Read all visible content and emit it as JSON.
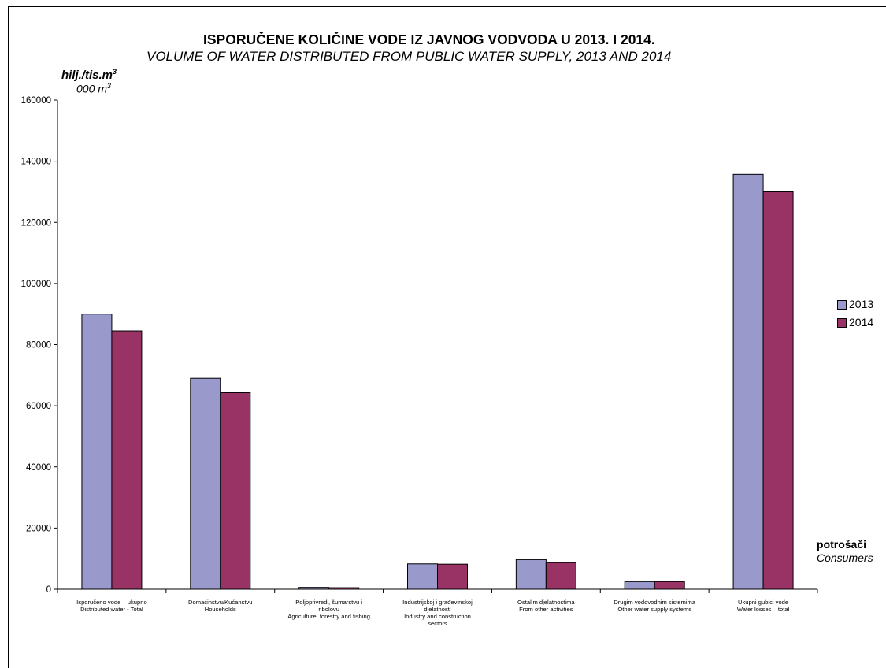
{
  "chart_data": {
    "type": "bar",
    "title": "ISPORUČENE  KOLIČINE VODE IZ JAVNOG VODVODA U 2013. I 2014.",
    "subtitle": "VOLUME OF WATER DISTRIBUTED FROM PUBLIC WATER SUPPLY, 2013 AND 2014",
    "ylabel": "hilj./tis.m",
    "ylabel_sup": "3",
    "ylabel2": "000 m",
    "ylabel2_sup": "3",
    "xlabel": "potrošači",
    "xlabel2": "Consumers",
    "ylim": [
      0,
      160000
    ],
    "yticks": [
      "0",
      "20000",
      "40000",
      "60000",
      "80000",
      "100000",
      "120000",
      "140000",
      "160000"
    ],
    "categories": [
      [
        "Isporučeno vode – ukupno",
        "Distributed water - Total"
      ],
      [
        "Domaćinstvu/Kućanstvu",
        "Households"
      ],
      [
        "Poljoprivredi, šumarstvu i",
        "ribolovu",
        "Agriculture, forestry and fishing"
      ],
      [
        "Industrijskoj i građevinskoj",
        "djelatnosti",
        "Industry and construction",
        "sectors"
      ],
      [
        "Ostalim djelatnostima",
        "From other activities"
      ],
      [
        "Drugim vodovodnim sistemima",
        "Other water supply systems"
      ],
      [
        "Ukupni gubici vode",
        "Water losses – total"
      ]
    ],
    "series": [
      {
        "name": "2013",
        "color": "#9999cc",
        "values": [
          90000,
          69000,
          600,
          8300,
          9700,
          2500,
          135700
        ]
      },
      {
        "name": "2014",
        "color": "#993366",
        "values": [
          84500,
          64300,
          500,
          8200,
          8700,
          2500,
          130000
        ]
      }
    ],
    "legend_position": "right",
    "grid": false
  }
}
